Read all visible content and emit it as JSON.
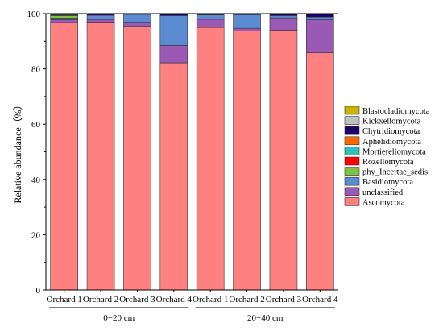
{
  "chart_data": {
    "type": "bar",
    "stacked": true,
    "ylabel": "Relative abundance（%）",
    "ylim": [
      0,
      100
    ],
    "yticks": [
      0,
      20,
      40,
      60,
      80,
      100
    ],
    "categories": [
      "Orchard 1",
      "Orchard 2",
      "Orchard 3",
      "Orchard 4",
      "Orchard 1",
      "Orchard 2",
      "Orchard 3",
      "Orchard 4"
    ],
    "groups": [
      {
        "label": "0−20 cm",
        "categories": [
          0,
          1,
          2,
          3
        ]
      },
      {
        "label": "20−40 cm",
        "categories": [
          4,
          5,
          6,
          7
        ]
      }
    ],
    "legend_position": "right",
    "series": [
      {
        "name": "Ascomycota",
        "color": "#FF8080",
        "values": [
          96.8,
          96.9,
          95.4,
          82.2,
          95.0,
          93.7,
          94.0,
          85.8
        ]
      },
      {
        "name": "unclassified",
        "color": "#9B59B6",
        "values": [
          1.0,
          1.0,
          1.5,
          6.3,
          3.0,
          1.0,
          4.5,
          12.0
        ]
      },
      {
        "name": "Basidiomycota",
        "color": "#5B8BD0",
        "values": [
          0.6,
          1.5,
          2.8,
          10.8,
          1.5,
          4.9,
          0.8,
          1.0
        ]
      },
      {
        "name": "phy_Incertae_sedis",
        "color": "#7DC242",
        "values": [
          0.9,
          0.0,
          0.0,
          0.0,
          0.1,
          0.0,
          0.0,
          0.0
        ]
      },
      {
        "name": "Rozellomycota",
        "color": "#FF0000",
        "values": [
          0.1,
          0.0,
          0.0,
          0.0,
          0.0,
          0.0,
          0.0,
          0.0
        ]
      },
      {
        "name": "Mortierellomycota",
        "color": "#2CC2B5",
        "values": [
          0.1,
          0.0,
          0.0,
          0.0,
          0.0,
          0.0,
          0.0,
          0.0
        ]
      },
      {
        "name": "Aphelidiomycota",
        "color": "#FF6A00",
        "values": [
          0.0,
          0.0,
          0.0,
          0.0,
          0.0,
          0.0,
          0.0,
          0.0
        ]
      },
      {
        "name": "Chytridiomycota",
        "color": "#1A0066",
        "values": [
          0.2,
          0.5,
          0.2,
          0.5,
          0.2,
          0.2,
          0.5,
          1.0
        ]
      },
      {
        "name": "Kickxellomycota",
        "color": "#C0C0C0",
        "values": [
          0.2,
          0.1,
          0.1,
          0.1,
          0.2,
          0.1,
          0.1,
          0.1
        ]
      },
      {
        "name": "Blastocladiomycota",
        "color": "#C8B400",
        "values": [
          0.1,
          0.0,
          0.0,
          0.1,
          0.0,
          0.1,
          0.1,
          0.1
        ]
      }
    ]
  }
}
